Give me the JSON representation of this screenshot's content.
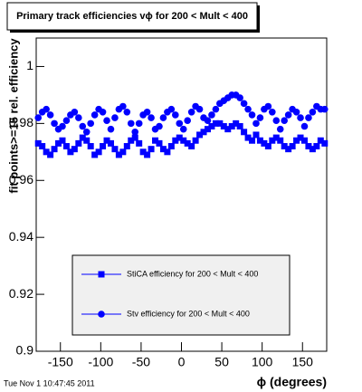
{
  "chart_data": {
    "type": "scatter",
    "title": "Primary track efficiencies vϕ for 200 < Mult < 400",
    "x_label": "ϕ (degrees)",
    "y_label": "fit points>=15 rel. efficiency",
    "footer": "Tue Nov  1 10:47:45 2011",
    "xlim": [
      -180,
      180
    ],
    "ylim": [
      0.9,
      1.01
    ],
    "xticks": [
      -150,
      -100,
      -50,
      0,
      50,
      100,
      150
    ],
    "yticks": [
      0.9,
      0.92,
      0.94,
      0.96,
      0.98,
      1
    ],
    "x": [
      -177.5,
      -172.5,
      -167.5,
      -162.5,
      -157.5,
      -152.5,
      -147.5,
      -142.5,
      -137.5,
      -132.5,
      -127.5,
      -122.5,
      -117.5,
      -112.5,
      -107.5,
      -102.5,
      -97.5,
      -92.5,
      -87.5,
      -82.5,
      -77.5,
      -72.5,
      -67.5,
      -62.5,
      -57.5,
      -52.5,
      -47.5,
      -42.5,
      -37.5,
      -32.5,
      -27.5,
      -22.5,
      -17.5,
      -12.5,
      -7.5,
      -2.5,
      2.5,
      7.5,
      12.5,
      17.5,
      22.5,
      27.5,
      32.5,
      37.5,
      42.5,
      47.5,
      52.5,
      57.5,
      62.5,
      67.5,
      72.5,
      77.5,
      82.5,
      87.5,
      92.5,
      97.5,
      102.5,
      107.5,
      112.5,
      117.5,
      122.5,
      127.5,
      132.5,
      137.5,
      142.5,
      147.5,
      152.5,
      157.5,
      162.5,
      167.5,
      172.5,
      177.5
    ],
    "series": [
      {
        "name": "StiCA  efficiency  for 200 < Mult < 400",
        "color": "#0000ff",
        "marker": "square",
        "values": [
          0.973,
          0.972,
          0.97,
          0.969,
          0.971,
          0.973,
          0.974,
          0.972,
          0.97,
          0.971,
          0.973,
          0.975,
          0.974,
          0.972,
          0.969,
          0.97,
          0.972,
          0.974,
          0.973,
          0.971,
          0.969,
          0.97,
          0.972,
          0.974,
          0.975,
          0.973,
          0.97,
          0.969,
          0.971,
          0.974,
          0.973,
          0.971,
          0.97,
          0.972,
          0.974,
          0.975,
          0.974,
          0.973,
          0.972,
          0.974,
          0.976,
          0.977,
          0.978,
          0.979,
          0.98,
          0.98,
          0.979,
          0.978,
          0.979,
          0.98,
          0.979,
          0.977,
          0.975,
          0.974,
          0.976,
          0.974,
          0.973,
          0.972,
          0.974,
          0.975,
          0.974,
          0.972,
          0.971,
          0.972,
          0.974,
          0.975,
          0.974,
          0.972,
          0.971,
          0.972,
          0.974,
          0.973
        ]
      },
      {
        "name": "Stv efficiency  for 200 < Mult < 400",
        "color": "#0000ff",
        "marker": "circle",
        "values": [
          0.982,
          0.984,
          0.985,
          0.983,
          0.98,
          0.978,
          0.979,
          0.981,
          0.983,
          0.984,
          0.982,
          0.979,
          0.977,
          0.98,
          0.983,
          0.985,
          0.984,
          0.981,
          0.978,
          0.982,
          0.985,
          0.986,
          0.984,
          0.98,
          0.977,
          0.98,
          0.983,
          0.984,
          0.982,
          0.978,
          0.979,
          0.982,
          0.984,
          0.985,
          0.983,
          0.98,
          0.978,
          0.981,
          0.984,
          0.986,
          0.985,
          0.982,
          0.981,
          0.983,
          0.985,
          0.987,
          0.988,
          0.989,
          0.99,
          0.99,
          0.989,
          0.987,
          0.985,
          0.983,
          0.98,
          0.982,
          0.985,
          0.986,
          0.984,
          0.981,
          0.978,
          0.981,
          0.983,
          0.985,
          0.984,
          0.982,
          0.979,
          0.982,
          0.984,
          0.986,
          0.985,
          0.985
        ]
      }
    ]
  }
}
